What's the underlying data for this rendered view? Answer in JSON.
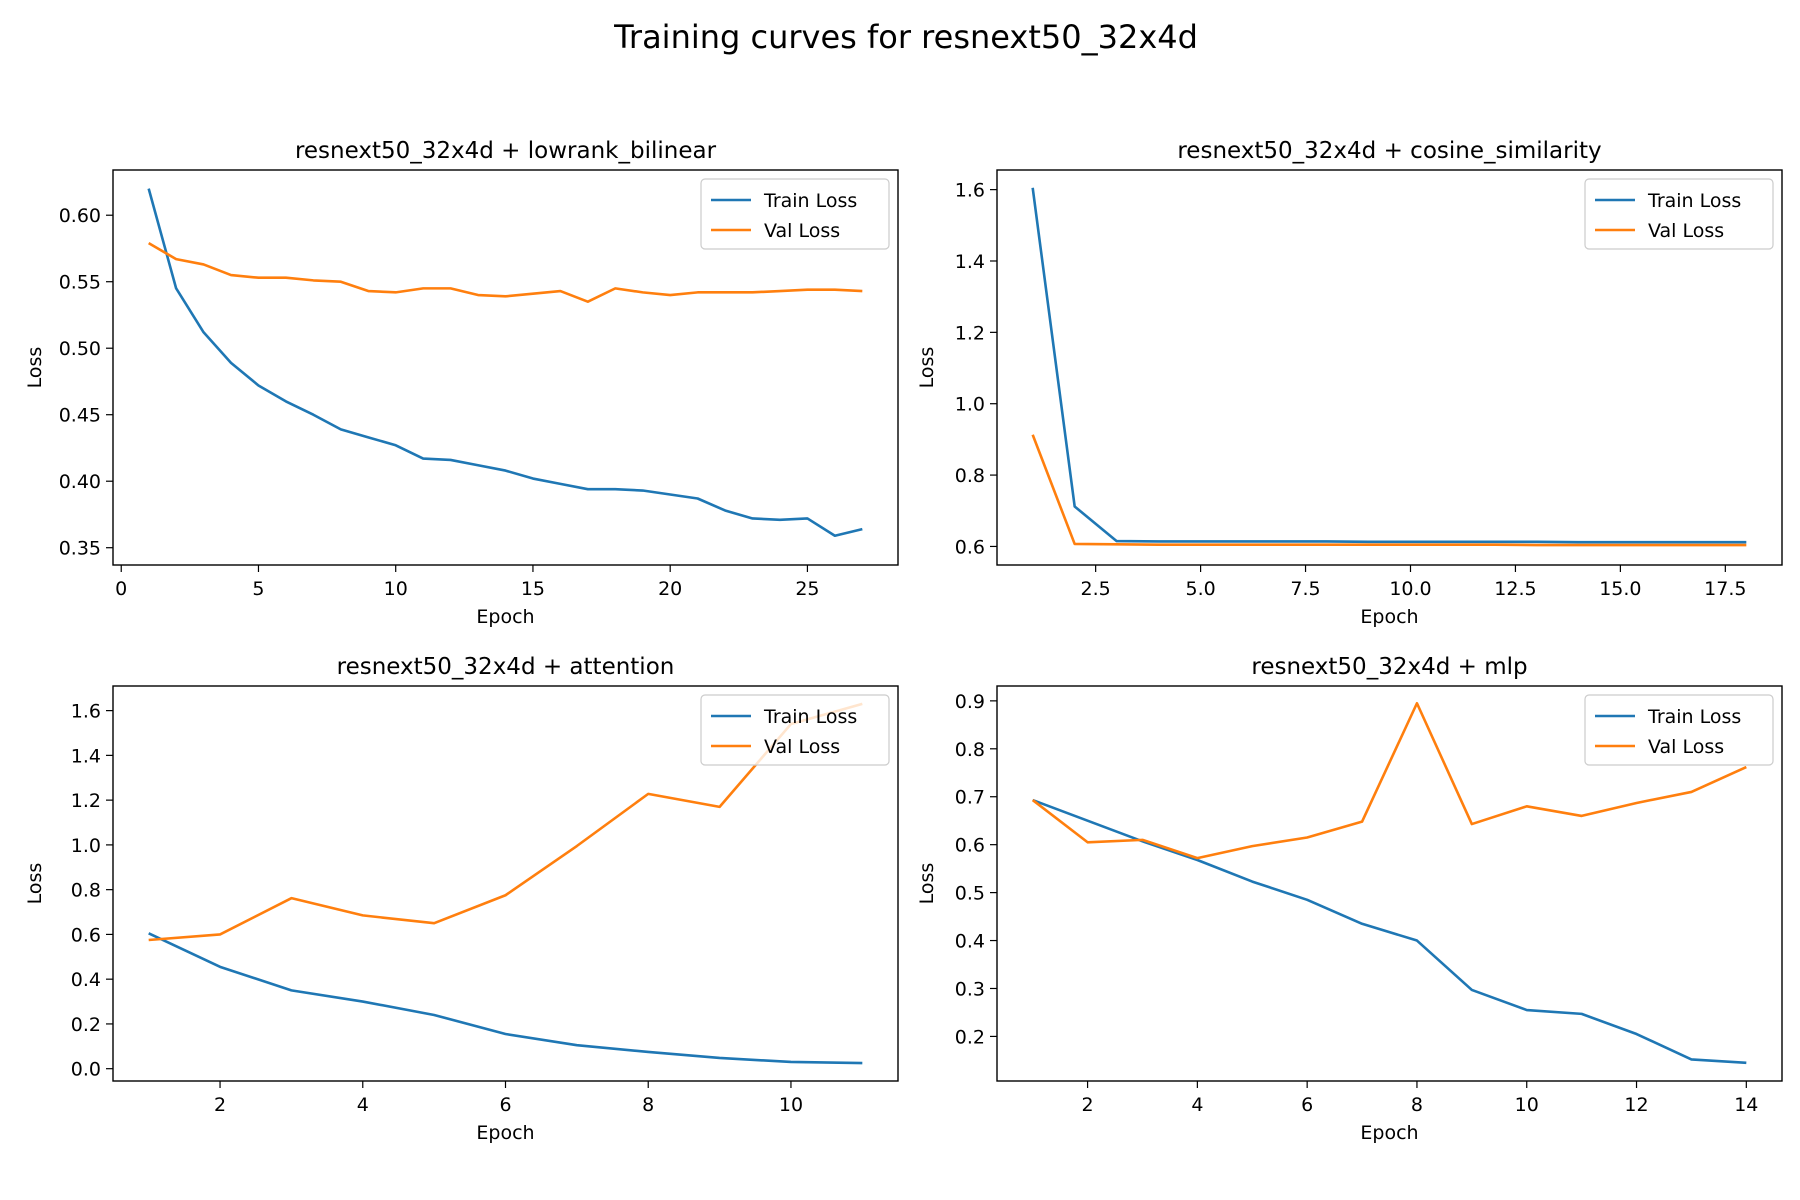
{
  "figure": {
    "title": "Training curves for resnext50_32x4d"
  },
  "colors": {
    "train": "#1f77b4",
    "val": "#ff7f0e"
  },
  "chart_data": [
    {
      "type": "line",
      "title": "resnext50_32x4d + lowrank_bilinear",
      "xlabel": "Epoch",
      "ylabel": "Loss",
      "xlim": [
        -0.3,
        28.3
      ],
      "ylim": [
        0.337,
        0.634
      ],
      "xticks": [
        0,
        5,
        10,
        15,
        20,
        25
      ],
      "xtick_labels": [
        "0",
        "5",
        "10",
        "15",
        "20",
        "25"
      ],
      "yticks": [
        0.35,
        0.4,
        0.45,
        0.5,
        0.55,
        0.6
      ],
      "ytick_labels": [
        "0.35",
        "0.40",
        "0.45",
        "0.50",
        "0.55",
        "0.60"
      ],
      "legend": "upper right",
      "x": [
        1,
        2,
        3,
        4,
        5,
        6,
        7,
        8,
        9,
        10,
        11,
        12,
        13,
        14,
        15,
        16,
        17,
        18,
        19,
        20,
        21,
        22,
        23,
        24,
        25,
        26,
        27
      ],
      "series": [
        {
          "name": "Train Loss",
          "values": [
            0.62,
            0.545,
            0.512,
            0.489,
            0.472,
            0.46,
            0.45,
            0.439,
            0.433,
            0.427,
            0.417,
            0.416,
            0.412,
            0.408,
            0.402,
            0.398,
            0.394,
            0.394,
            0.393,
            0.39,
            0.387,
            0.378,
            0.372,
            0.371,
            0.372,
            0.359,
            0.364
          ]
        },
        {
          "name": "Val Loss",
          "values": [
            0.579,
            0.567,
            0.563,
            0.555,
            0.553,
            0.553,
            0.551,
            0.55,
            0.543,
            0.542,
            0.545,
            0.545,
            0.54,
            0.539,
            0.541,
            0.543,
            0.535,
            0.545,
            0.542,
            0.54,
            0.542,
            0.542,
            0.542,
            0.543,
            0.544,
            0.544,
            0.543
          ]
        }
      ]
    },
    {
      "type": "line",
      "title": "resnext50_32x4d + cosine_similarity",
      "xlabel": "Epoch",
      "ylabel": "Loss",
      "xlim": [
        0.15,
        18.85
      ],
      "ylim": [
        0.548,
        1.655
      ],
      "xticks": [
        2.5,
        5.0,
        7.5,
        10.0,
        12.5,
        15.0,
        17.5
      ],
      "xtick_labels": [
        "2.5",
        "5.0",
        "7.5",
        "10.0",
        "12.5",
        "15.0",
        "17.5"
      ],
      "yticks": [
        0.6,
        0.8,
        1.0,
        1.2,
        1.4,
        1.6
      ],
      "ytick_labels": [
        "0.6",
        "0.8",
        "1.0",
        "1.2",
        "1.4",
        "1.6"
      ],
      "legend": "upper right",
      "x": [
        1,
        2,
        3,
        4,
        5,
        6,
        7,
        8,
        9,
        10,
        11,
        12,
        13,
        14,
        15,
        16,
        17,
        18
      ],
      "series": [
        {
          "name": "Train Loss",
          "values": [
            1.605,
            0.712,
            0.615,
            0.614,
            0.614,
            0.614,
            0.614,
            0.614,
            0.613,
            0.613,
            0.613,
            0.613,
            0.613,
            0.612,
            0.612,
            0.612,
            0.612,
            0.612
          ]
        },
        {
          "name": "Val Loss",
          "values": [
            0.913,
            0.607,
            0.606,
            0.605,
            0.605,
            0.605,
            0.605,
            0.605,
            0.605,
            0.605,
            0.605,
            0.605,
            0.604,
            0.604,
            0.604,
            0.604,
            0.604,
            0.604
          ]
        }
      ]
    },
    {
      "type": "line",
      "title": "resnext50_32x4d + attention",
      "xlabel": "Epoch",
      "ylabel": "Loss",
      "xlim": [
        0.5,
        11.5
      ],
      "ylim": [
        -0.055,
        1.71
      ],
      "xticks": [
        2,
        4,
        6,
        8,
        10
      ],
      "xtick_labels": [
        "2",
        "4",
        "6",
        "8",
        "10"
      ],
      "yticks": [
        0.0,
        0.2,
        0.4,
        0.6,
        0.8,
        1.0,
        1.2,
        1.4,
        1.6
      ],
      "ytick_labels": [
        "0.0",
        "0.2",
        "0.4",
        "0.6",
        "0.8",
        "1.0",
        "1.2",
        "1.4",
        "1.6"
      ],
      "legend": "upper right",
      "x": [
        1,
        2,
        3,
        4,
        5,
        6,
        7,
        8,
        9,
        10,
        11
      ],
      "series": [
        {
          "name": "Train Loss",
          "values": [
            0.605,
            0.455,
            0.35,
            0.3,
            0.24,
            0.155,
            0.105,
            0.075,
            0.048,
            0.03,
            0.025
          ]
        },
        {
          "name": "Val Loss",
          "values": [
            0.575,
            0.6,
            0.762,
            0.685,
            0.65,
            0.775,
            0.995,
            1.228,
            1.17,
            1.54,
            1.63
          ]
        }
      ]
    },
    {
      "type": "line",
      "title": "resnext50_32x4d + mlp",
      "xlabel": "Epoch",
      "ylabel": "Loss",
      "xlim": [
        0.35,
        14.65
      ],
      "ylim": [
        0.107,
        0.931
      ],
      "xticks": [
        2,
        4,
        6,
        8,
        10,
        12,
        14
      ],
      "xtick_labels": [
        "2",
        "4",
        "6",
        "8",
        "10",
        "12",
        "14"
      ],
      "yticks": [
        0.2,
        0.3,
        0.4,
        0.5,
        0.6,
        0.7,
        0.8,
        0.9
      ],
      "ytick_labels": [
        "0.2",
        "0.3",
        "0.4",
        "0.5",
        "0.6",
        "0.7",
        "0.8",
        "0.9"
      ],
      "legend": "upper right",
      "x": [
        1,
        2,
        3,
        4,
        5,
        6,
        7,
        8,
        9,
        10,
        11,
        12,
        13,
        14
      ],
      "series": [
        {
          "name": "Train Loss",
          "values": [
            0.693,
            0.65,
            0.607,
            0.568,
            0.523,
            0.485,
            0.435,
            0.4,
            0.297,
            0.255,
            0.247,
            0.205,
            0.152,
            0.145
          ]
        },
        {
          "name": "Val Loss",
          "values": [
            0.693,
            0.605,
            0.61,
            0.572,
            0.597,
            0.615,
            0.648,
            0.895,
            0.643,
            0.68,
            0.66,
            0.687,
            0.71,
            0.762
          ]
        }
      ]
    }
  ]
}
